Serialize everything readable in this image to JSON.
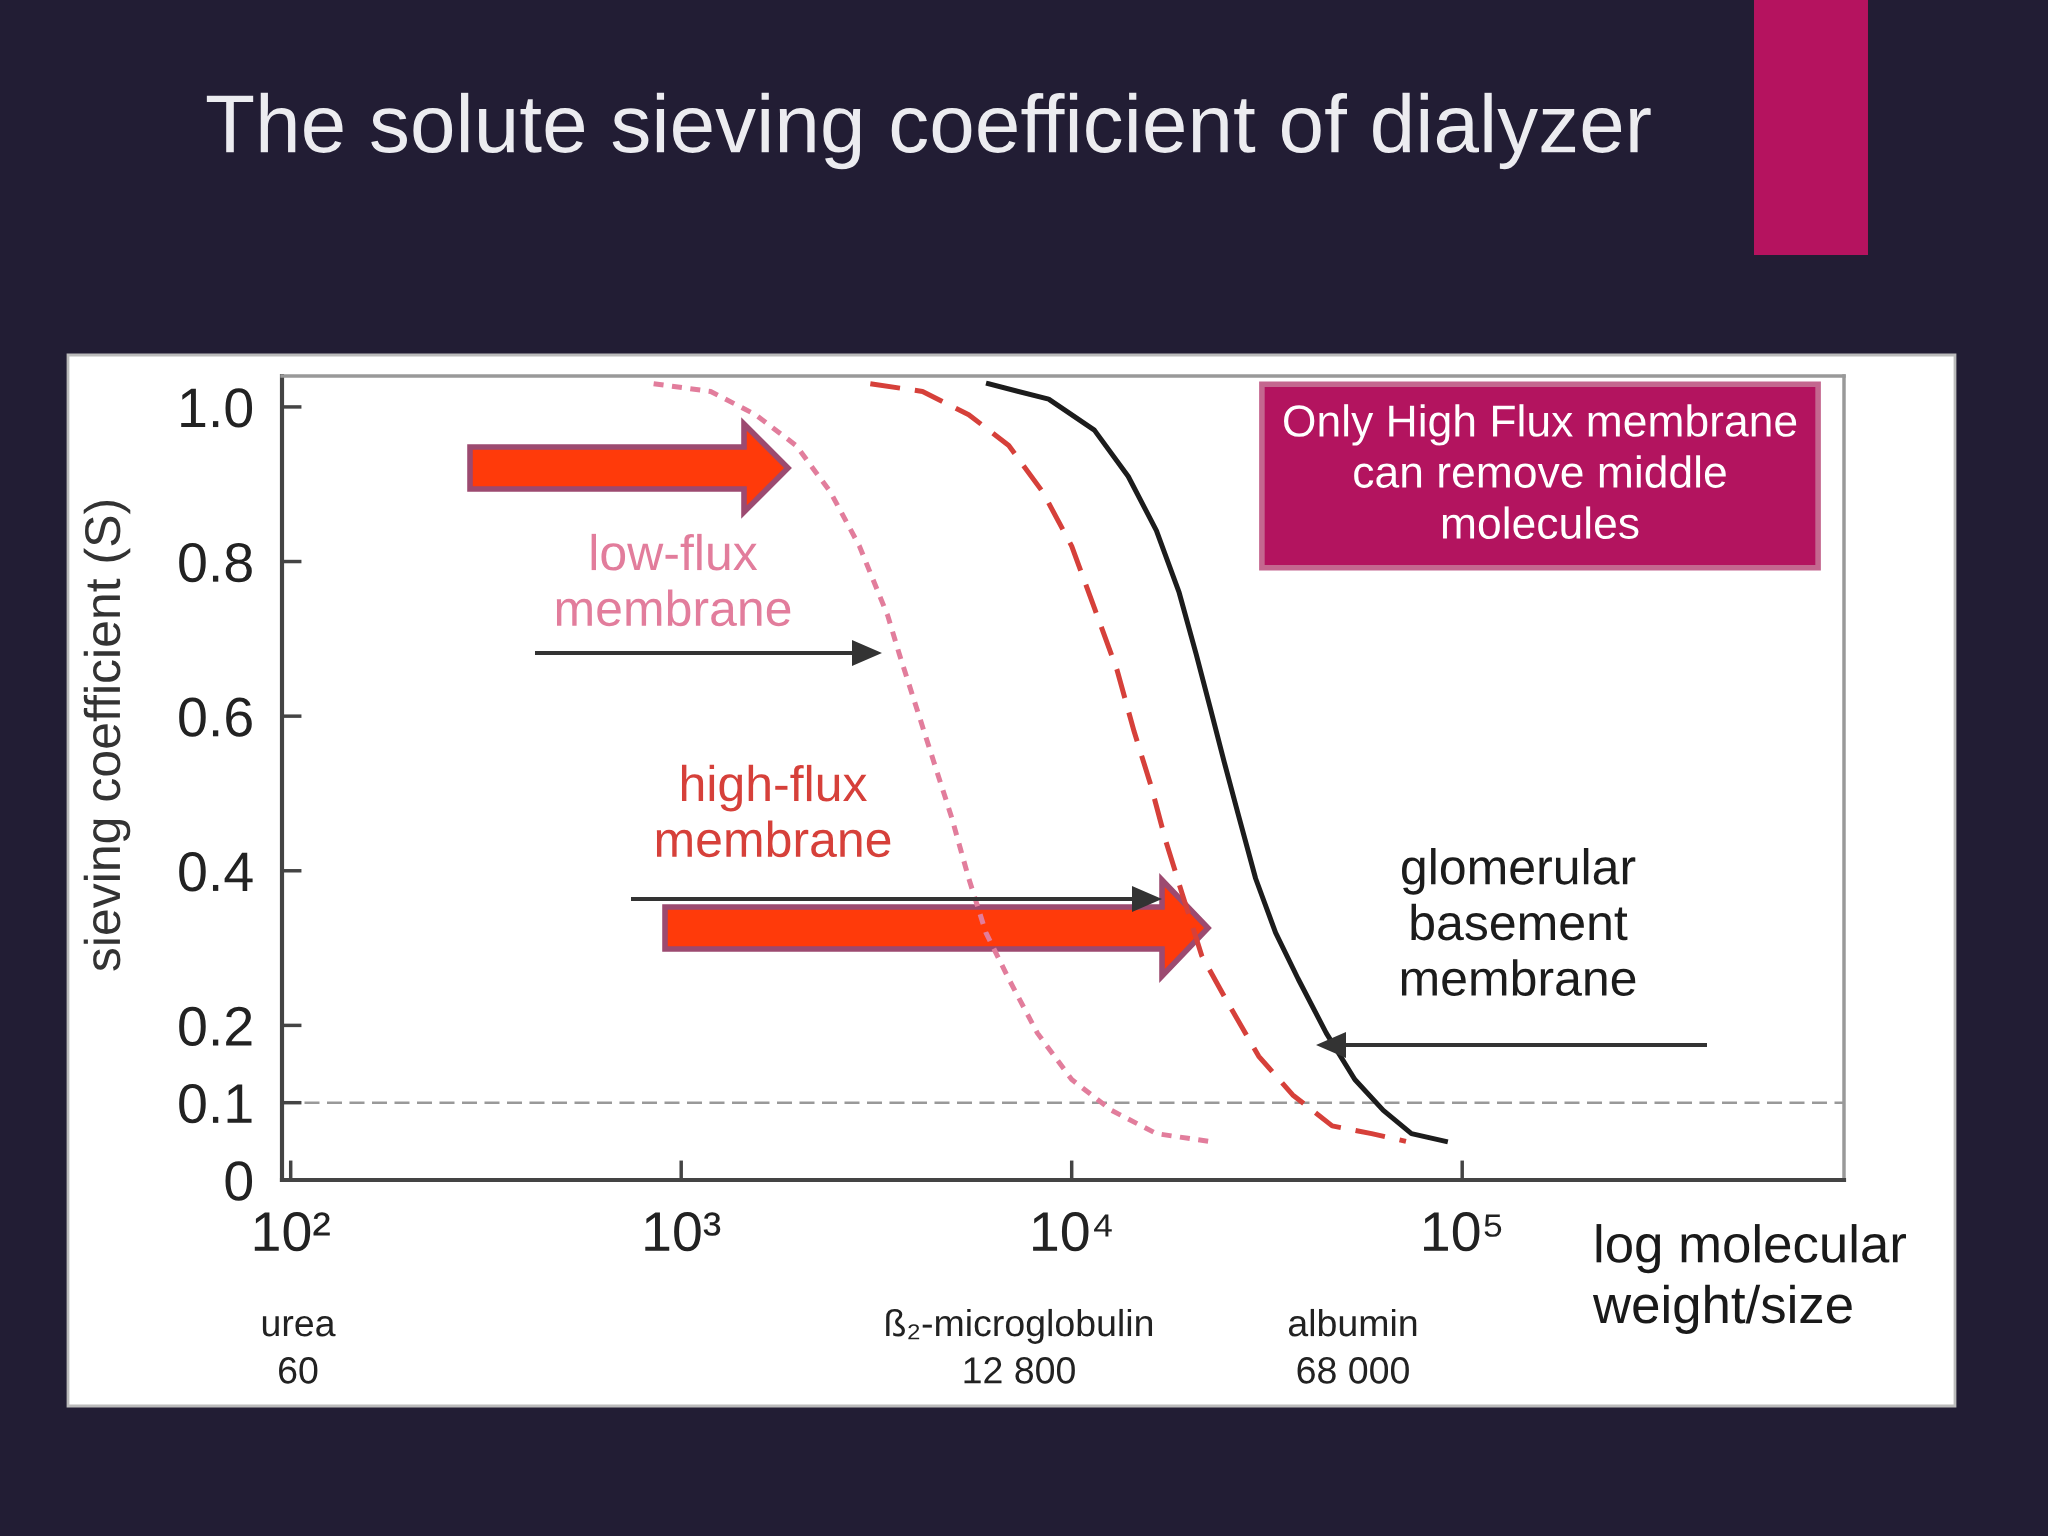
{
  "chart_data": {
    "type": "line",
    "title": "The solute sieving coefficient of dialyzer",
    "xlabel": "log molecular\nweight/size",
    "ylabel": "sieving coefficient (S)",
    "log": "x",
    "xlim": [
      95,
      950000
    ],
    "xticks": [
      {
        "value": 100,
        "label": "10²"
      },
      {
        "value": 1000,
        "label": "10³"
      },
      {
        "value": 10000,
        "label": "10⁴"
      },
      {
        "value": 100000,
        "label": "10⁵"
      }
    ],
    "ylim": [
      0,
      1.04
    ],
    "yticks": [
      0,
      0.1,
      0.2,
      0.4,
      0.6,
      0.8,
      {
        "value": 1,
        "label": "1.0"
      }
    ],
    "series": [
      {
        "name": "low-flux\nmembrane",
        "color": "#e27d9c",
        "line_style": "dotted",
        "x": [
          850,
          1190,
          1550,
          1970,
          2410,
          2860,
          3380,
          3620,
          4010,
          4440,
          4920,
          5450,
          6030,
          6900,
          8170,
          10000,
          12650,
          16480,
          22390
        ],
        "values": [
          1.03,
          1.02,
          0.99,
          0.95,
          0.89,
          0.82,
          0.73,
          0.68,
          0.61,
          0.54,
          0.47,
          0.39,
          0.32,
          0.26,
          0.19,
          0.13,
          0.09,
          0.06,
          0.05
        ]
      },
      {
        "name": "high-flux\nmembrane",
        "color": "#d6403a",
        "line_style": "dashed",
        "x": [
          3050,
          4150,
          5450,
          6900,
          8430,
          10000,
          11430,
          13060,
          14450,
          15960,
          17380,
          19190,
          21530,
          25060,
          30130,
          36810,
          46450,
          58610,
          71780
        ],
        "values": [
          1.03,
          1.02,
          0.99,
          0.95,
          0.89,
          0.82,
          0.74,
          0.66,
          0.58,
          0.51,
          0.44,
          0.37,
          0.29,
          0.23,
          0.16,
          0.11,
          0.07,
          0.06,
          0.05
        ]
      },
      {
        "name": "glomerular\nbasement\nmembrane",
        "color": "#1c1c1c",
        "line_style": "solid",
        "x": [
          6120,
          8730,
          11430,
          13960,
          16480,
          18840,
          20840,
          22650,
          24600,
          26790,
          29580,
          33270,
          38020,
          44870,
          53090,
          62810,
          74130,
          90570
        ],
        "values": [
          1.03,
          1.01,
          0.97,
          0.91,
          0.84,
          0.76,
          0.68,
          0.61,
          0.54,
          0.47,
          0.39,
          0.32,
          0.26,
          0.19,
          0.13,
          0.09,
          0.06,
          0.05
        ]
      }
    ],
    "ref_lines": [
      {
        "axis": "y",
        "value": 0.1,
        "color": "#999999",
        "line_style": "dashed"
      }
    ],
    "annotations": [
      "Only High Flux membrane\ncan remove middle\nmolecules",
      "urea\n60",
      "ß₂-microglobulin\n12 800",
      "albumin\n68 000"
    ]
  }
}
